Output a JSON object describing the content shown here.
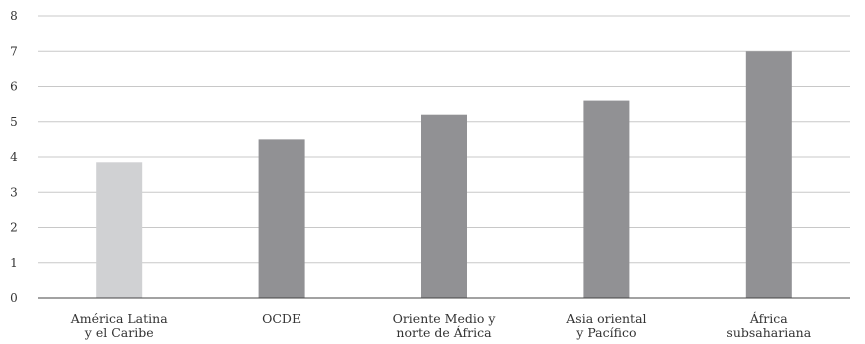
{
  "chart_data": {
    "type": "bar",
    "title": "",
    "xlabel": "",
    "ylabel": "",
    "ylim": [
      0,
      8
    ],
    "yticks": [
      0,
      1,
      2,
      3,
      4,
      5,
      6,
      7,
      8
    ],
    "ytick_labels": [
      "0",
      "1",
      "2",
      "3",
      "4",
      "5",
      "6",
      "7",
      "8"
    ],
    "grid": true,
    "categories": [
      [
        "América Latina",
        "y el Caribe"
      ],
      [
        "OCDE"
      ],
      [
        "Oriente Medio y",
        "norte de África"
      ],
      [
        "Asia oriental",
        "y Pacífico"
      ],
      [
        "África",
        "subsahariana"
      ]
    ],
    "values": [
      3.85,
      4.5,
      5.2,
      5.6,
      7.0
    ],
    "bar_colors": [
      "#d0d1d3",
      "#919194",
      "#919194",
      "#919194",
      "#919194"
    ]
  }
}
